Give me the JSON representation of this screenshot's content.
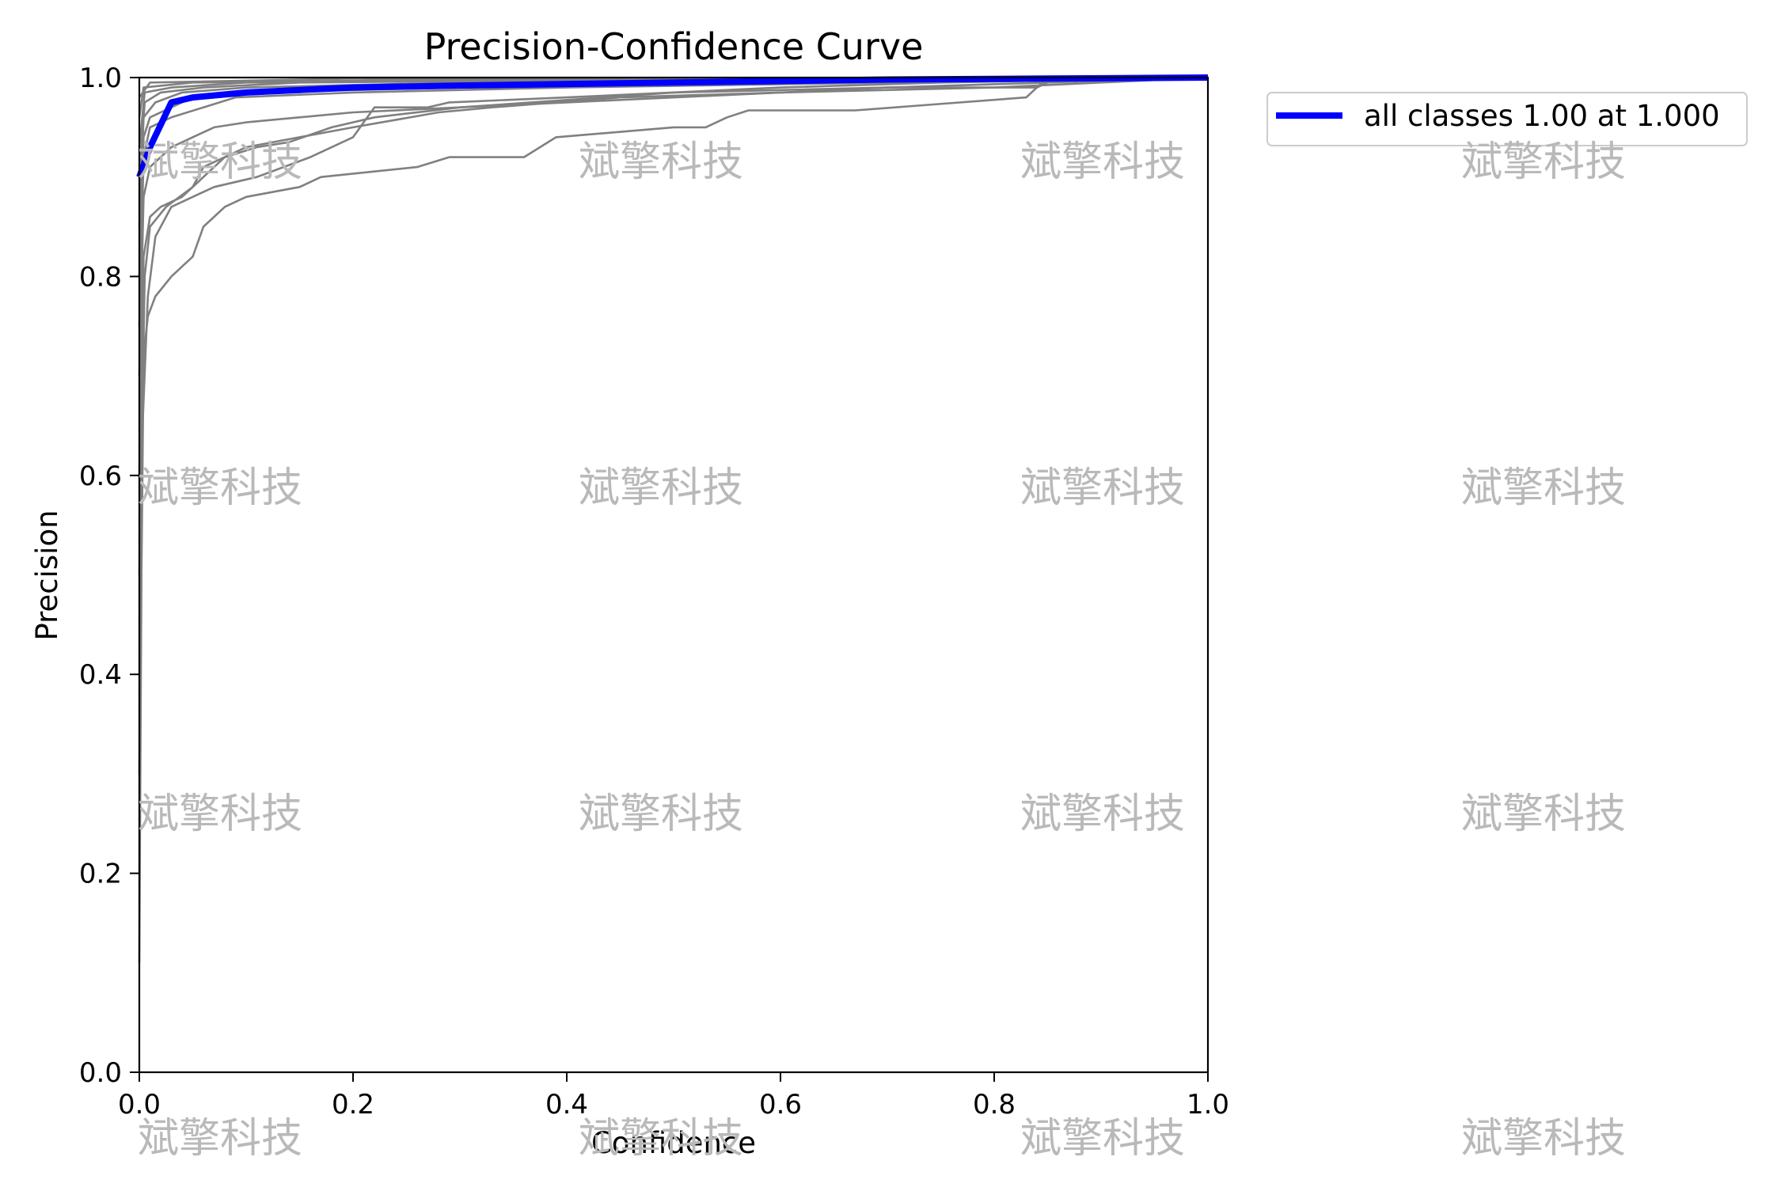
{
  "chart_data": {
    "type": "line",
    "title": "Precision-Confidence Curve",
    "xlabel": "Confidence",
    "ylabel": "Precision",
    "xlim": [
      0,
      1
    ],
    "ylim": [
      0,
      1
    ],
    "x_ticks": [
      "0.0",
      "0.2",
      "0.4",
      "0.6",
      "0.8",
      "1.0"
    ],
    "y_ticks": [
      "0.0",
      "0.2",
      "0.4",
      "0.6",
      "0.8",
      "1.0"
    ],
    "grid": false,
    "legend_position": "outside-right-top",
    "highlight_series": {
      "name": "all classes 1.00 at 1.000",
      "color": "#0000ff",
      "points": [
        [
          0.0,
          0.9
        ],
        [
          0.01,
          0.93
        ],
        [
          0.03,
          0.975
        ],
        [
          0.05,
          0.98
        ],
        [
          0.1,
          0.985
        ],
        [
          0.2,
          0.99
        ],
        [
          0.3,
          0.992
        ],
        [
          0.5,
          0.995
        ],
        [
          0.7,
          0.998
        ],
        [
          0.85,
          0.999
        ],
        [
          1.0,
          1.0
        ]
      ]
    },
    "class_series_color": "#808080",
    "class_series": [
      {
        "points": [
          [
            0.0,
            0.11
          ],
          [
            0.002,
            0.5
          ],
          [
            0.004,
            0.72
          ],
          [
            0.008,
            0.76
          ],
          [
            0.015,
            0.78
          ],
          [
            0.03,
            0.8
          ],
          [
            0.04,
            0.81
          ],
          [
            0.05,
            0.82
          ],
          [
            0.06,
            0.85
          ],
          [
            0.07,
            0.86
          ],
          [
            0.08,
            0.87
          ],
          [
            0.1,
            0.88
          ],
          [
            0.15,
            0.89
          ],
          [
            0.17,
            0.9
          ],
          [
            0.26,
            0.91
          ],
          [
            0.29,
            0.92
          ],
          [
            0.36,
            0.92
          ],
          [
            0.39,
            0.94
          ],
          [
            0.5,
            0.95
          ],
          [
            0.53,
            0.95
          ],
          [
            0.55,
            0.96
          ],
          [
            0.57,
            0.967
          ],
          [
            0.67,
            0.967
          ],
          [
            0.83,
            0.98
          ],
          [
            0.85,
            1.0
          ],
          [
            1.0,
            1.0
          ]
        ]
      },
      {
        "points": [
          [
            0.0,
            0.3
          ],
          [
            0.003,
            0.65
          ],
          [
            0.008,
            0.78
          ],
          [
            0.015,
            0.84
          ],
          [
            0.03,
            0.87
          ],
          [
            0.05,
            0.88
          ],
          [
            0.07,
            0.89
          ],
          [
            0.11,
            0.9
          ],
          [
            0.16,
            0.92
          ],
          [
            0.2,
            0.94
          ],
          [
            0.22,
            0.97
          ],
          [
            0.27,
            0.97
          ],
          [
            0.29,
            0.975
          ],
          [
            0.4,
            0.98
          ],
          [
            0.6,
            0.99
          ],
          [
            0.75,
            0.995
          ],
          [
            0.96,
            0.999
          ],
          [
            1.0,
            1.0
          ]
        ]
      },
      {
        "points": [
          [
            0.0,
            0.5
          ],
          [
            0.005,
            0.8
          ],
          [
            0.01,
            0.85
          ],
          [
            0.025,
            0.87
          ],
          [
            0.05,
            0.89
          ],
          [
            0.06,
            0.91
          ],
          [
            0.08,
            0.92
          ],
          [
            0.1,
            0.93
          ],
          [
            0.15,
            0.94
          ],
          [
            0.2,
            0.95
          ],
          [
            0.28,
            0.965
          ],
          [
            0.33,
            0.97
          ],
          [
            0.45,
            0.98
          ],
          [
            0.6,
            0.985
          ],
          [
            0.7,
            0.99
          ],
          [
            0.85,
            0.995
          ],
          [
            1.0,
            1.0
          ]
        ]
      },
      {
        "points": [
          [
            0.0,
            0.6
          ],
          [
            0.004,
            0.82
          ],
          [
            0.01,
            0.86
          ],
          [
            0.02,
            0.87
          ],
          [
            0.04,
            0.88
          ],
          [
            0.06,
            0.9
          ],
          [
            0.08,
            0.92
          ],
          [
            0.11,
            0.93
          ],
          [
            0.14,
            0.935
          ],
          [
            0.18,
            0.95
          ],
          [
            0.22,
            0.96
          ],
          [
            0.3,
            0.97
          ],
          [
            0.5,
            0.985
          ],
          [
            0.7,
            0.99
          ],
          [
            0.84,
            0.99
          ],
          [
            0.86,
            1.0
          ],
          [
            1.0,
            1.0
          ]
        ]
      },
      {
        "points": [
          [
            0.0,
            0.7
          ],
          [
            0.004,
            0.88
          ],
          [
            0.01,
            0.91
          ],
          [
            0.03,
            0.93
          ],
          [
            0.05,
            0.94
          ],
          [
            0.07,
            0.95
          ],
          [
            0.1,
            0.955
          ],
          [
            0.2,
            0.965
          ],
          [
            0.4,
            0.975
          ],
          [
            0.6,
            0.985
          ],
          [
            0.8,
            0.99
          ],
          [
            1.0,
            1.0
          ]
        ]
      },
      {
        "points": [
          [
            0.0,
            0.75
          ],
          [
            0.004,
            0.92
          ],
          [
            0.01,
            0.95
          ],
          [
            0.03,
            0.96
          ],
          [
            0.06,
            0.97
          ],
          [
            0.09,
            0.98
          ],
          [
            0.2,
            0.985
          ],
          [
            0.4,
            0.99
          ],
          [
            0.7,
            0.995
          ],
          [
            1.0,
            1.0
          ]
        ]
      },
      {
        "points": [
          [
            0.0,
            0.8
          ],
          [
            0.004,
            0.94
          ],
          [
            0.01,
            0.96
          ],
          [
            0.03,
            0.97
          ],
          [
            0.05,
            0.98
          ],
          [
            0.1,
            0.985
          ],
          [
            0.3,
            0.99
          ],
          [
            0.6,
            0.995
          ],
          [
            1.0,
            1.0
          ]
        ]
      },
      {
        "points": [
          [
            0.0,
            0.85
          ],
          [
            0.004,
            0.96
          ],
          [
            0.015,
            0.975
          ],
          [
            0.04,
            0.985
          ],
          [
            0.1,
            0.99
          ],
          [
            0.3,
            0.995
          ],
          [
            0.7,
            0.998
          ],
          [
            1.0,
            1.0
          ]
        ]
      },
      {
        "points": [
          [
            0.0,
            0.9
          ],
          [
            0.005,
            0.975
          ],
          [
            0.02,
            0.985
          ],
          [
            0.06,
            0.99
          ],
          [
            0.15,
            0.995
          ],
          [
            0.5,
            0.998
          ],
          [
            1.0,
            1.0
          ]
        ]
      },
      {
        "points": [
          [
            0.0,
            0.93
          ],
          [
            0.005,
            0.985
          ],
          [
            0.03,
            0.99
          ],
          [
            0.1,
            0.995
          ],
          [
            0.4,
            0.998
          ],
          [
            1.0,
            1.0
          ]
        ]
      },
      {
        "points": [
          [
            0.0,
            0.96
          ],
          [
            0.004,
            0.99
          ],
          [
            0.05,
            0.995
          ],
          [
            0.3,
            0.998
          ],
          [
            1.0,
            1.0
          ]
        ]
      },
      {
        "points": [
          [
            0.0,
            0.98
          ],
          [
            0.01,
            0.995
          ],
          [
            0.2,
            0.999
          ],
          [
            1.0,
            1.0
          ]
        ]
      }
    ]
  },
  "watermark": "斌擎科技"
}
